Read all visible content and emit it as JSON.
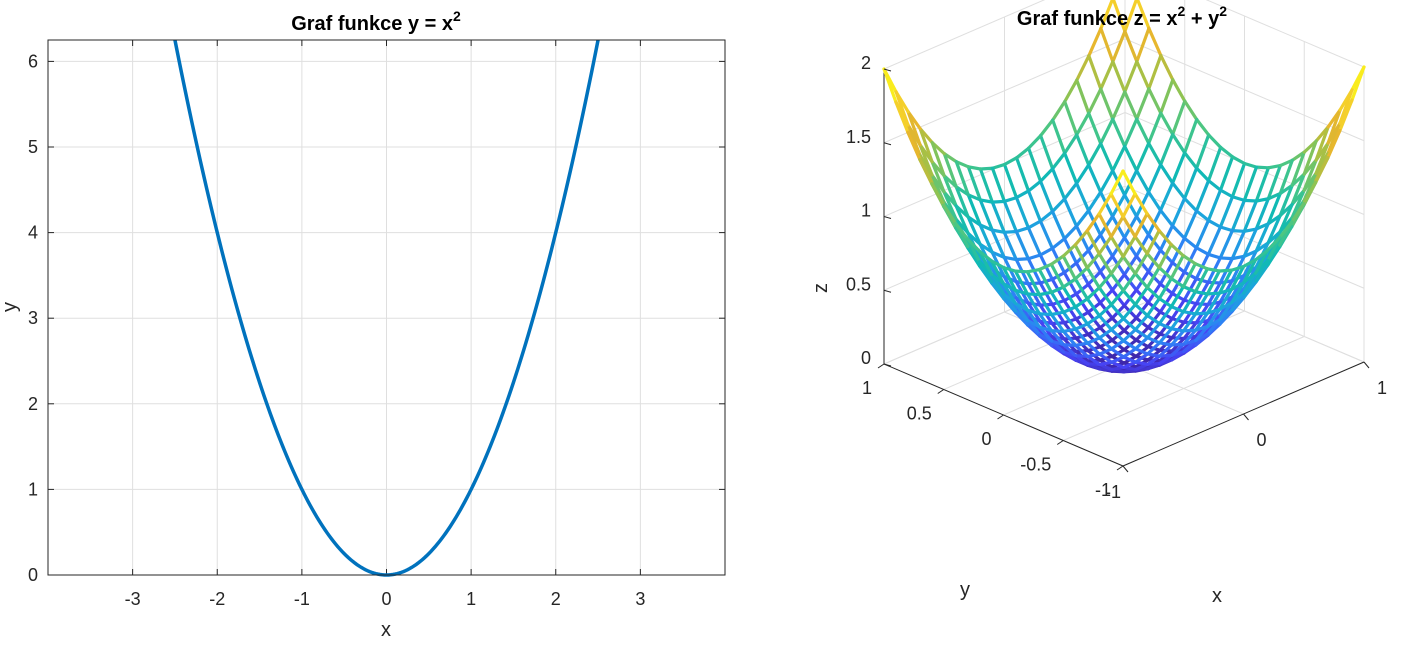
{
  "chart_data": [
    {
      "type": "line",
      "title": "Graf funkce y = x",
      "title_superscript": "2",
      "xlabel": "x",
      "ylabel": "y",
      "xlim": [
        -4,
        4
      ],
      "ylim": [
        0,
        6.25
      ],
      "xticks": [
        "-3",
        "-2",
        "-1",
        "0",
        "1",
        "2",
        "3"
      ],
      "yticks": [
        "0",
        "1",
        "2",
        "3",
        "4",
        "5",
        "6"
      ],
      "grid": true,
      "line_color": "#0072bd",
      "series": [
        {
          "function": "y = x^2",
          "x": [
            -2.5,
            -2.25,
            -2,
            -1.75,
            -1.5,
            -1.25,
            -1,
            -0.75,
            -0.5,
            -0.25,
            0,
            0.25,
            0.5,
            0.75,
            1,
            1.25,
            1.5,
            1.75,
            2,
            2.25,
            2.5
          ],
          "y": [
            6.25,
            5.0625,
            4,
            3.0625,
            2.25,
            1.5625,
            1,
            0.5625,
            0.25,
            0.0625,
            0,
            0.0625,
            0.25,
            0.5625,
            1,
            1.5625,
            2.25,
            3.0625,
            4,
            5.0625,
            6.25
          ]
        }
      ]
    },
    {
      "type": "mesh",
      "title": "Graf funkce z = x",
      "title_sup1": "2",
      "title_mid": " + y",
      "title_sup2": "2",
      "xlabel": "x",
      "ylabel": "y",
      "zlabel": "z",
      "xlim": [
        -1,
        1
      ],
      "ylim": [
        -1,
        1
      ],
      "zlim": [
        0,
        2
      ],
      "xticks": [
        "-1",
        "0",
        "1"
      ],
      "yticks": [
        "-1",
        "-0.5",
        "0",
        "0.5",
        "1"
      ],
      "zticks": [
        "0",
        "0.5",
        "1",
        "1.5",
        "2"
      ],
      "grid_count": 21,
      "colormap": [
        "#3e26a8",
        "#4743f4",
        "#2f7ff6",
        "#1ca5dd",
        "#10bab3",
        "#48c686",
        "#9bc24a",
        "#e6b62e",
        "#f9d82a",
        "#f9fb15"
      ],
      "function": "z = x^2 + y^2"
    }
  ]
}
